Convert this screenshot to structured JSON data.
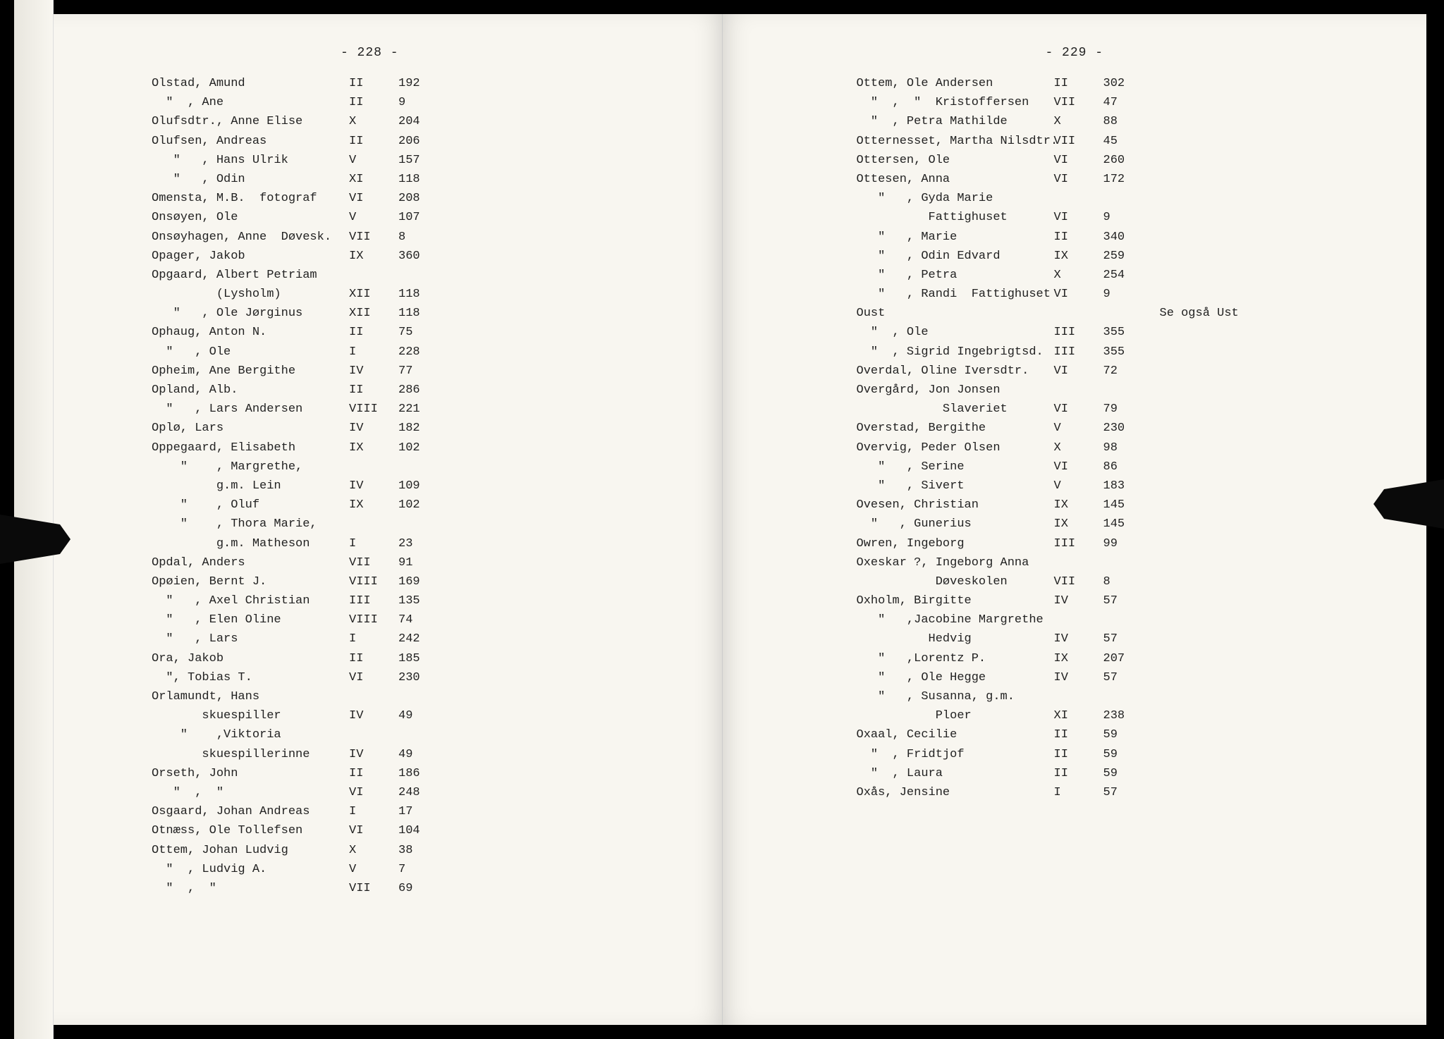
{
  "left": {
    "page_number": "- 228 -",
    "entries": [
      {
        "name": "Olstad, Amund",
        "vol": "II",
        "pg": "192"
      },
      {
        "name": "  \"  , Ane",
        "vol": "II",
        "pg": "9"
      },
      {
        "name": "Olufsdtr., Anne Elise",
        "vol": "X",
        "pg": "204"
      },
      {
        "name": "Olufsen, Andreas",
        "vol": "II",
        "pg": "206"
      },
      {
        "name": "   \"   , Hans Ulrik",
        "vol": "V",
        "pg": "157"
      },
      {
        "name": "   \"   , Odin",
        "vol": "XI",
        "pg": "118"
      },
      {
        "name": "Omensta, M.B.  fotograf",
        "vol": "VI",
        "pg": "208"
      },
      {
        "name": "Onsøyen, Ole",
        "vol": "V",
        "pg": "107"
      },
      {
        "name": "Onsøyhagen, Anne  Døvesk.",
        "vol": "VII",
        "pg": "8"
      },
      {
        "name": "Opager, Jakob",
        "vol": "IX",
        "pg": "360"
      },
      {
        "name": "Opgaard, Albert Petriam",
        "vol": "",
        "pg": ""
      },
      {
        "name": "         (Lysholm)",
        "vol": "XII",
        "pg": "118"
      },
      {
        "name": "   \"   , Ole Jørginus",
        "vol": "XII",
        "pg": "118"
      },
      {
        "name": "Ophaug, Anton N.",
        "vol": "II",
        "pg": "75"
      },
      {
        "name": "  \"   , Ole",
        "vol": "I",
        "pg": "228"
      },
      {
        "name": "Opheim, Ane Bergithe",
        "vol": "IV",
        "pg": "77"
      },
      {
        "name": "Opland, Alb.",
        "vol": "II",
        "pg": "286"
      },
      {
        "name": "  \"   , Lars Andersen",
        "vol": "VIII",
        "pg": "221"
      },
      {
        "name": "Oplø, Lars",
        "vol": "IV",
        "pg": "182"
      },
      {
        "name": "Oppegaard, Elisabeth",
        "vol": "IX",
        "pg": "102"
      },
      {
        "name": "    \"    , Margrethe,",
        "vol": "",
        "pg": ""
      },
      {
        "name": "         g.m. Lein",
        "vol": "IV",
        "pg": "109"
      },
      {
        "name": "    \"    , Oluf",
        "vol": "IX",
        "pg": "102"
      },
      {
        "name": "    \"    , Thora Marie,",
        "vol": "",
        "pg": ""
      },
      {
        "name": "         g.m. Matheson",
        "vol": "I",
        "pg": "23"
      },
      {
        "name": "Opdal, Anders",
        "vol": "VII",
        "pg": "91"
      },
      {
        "name": "Opøien, Bernt J.",
        "vol": "VIII",
        "pg": "169"
      },
      {
        "name": "  \"   , Axel Christian",
        "vol": "III",
        "pg": "135"
      },
      {
        "name": "  \"   , Elen Oline",
        "vol": "VIII",
        "pg": "74"
      },
      {
        "name": "  \"   , Lars",
        "vol": "I",
        "pg": "242"
      },
      {
        "name": "Ora, Jakob",
        "vol": "II",
        "pg": "185"
      },
      {
        "name": "  \", Tobias T.",
        "vol": "VI",
        "pg": "230"
      },
      {
        "name": "Orlamundt, Hans",
        "vol": "",
        "pg": ""
      },
      {
        "name": "       skuespiller",
        "vol": "IV",
        "pg": "49"
      },
      {
        "name": "    \"    ,Viktoria",
        "vol": "",
        "pg": ""
      },
      {
        "name": "       skuespillerinne",
        "vol": "IV",
        "pg": "49"
      },
      {
        "name": "Orseth, John",
        "vol": "II",
        "pg": "186"
      },
      {
        "name": "   \"  ,  \"",
        "vol": "VI",
        "pg": "248"
      },
      {
        "name": "Osgaard, Johan Andreas",
        "vol": "I",
        "pg": "17"
      },
      {
        "name": "Otnæss, Ole Tollefsen",
        "vol": "VI",
        "pg": "104"
      },
      {
        "name": "Ottem, Johan Ludvig",
        "vol": "X",
        "pg": "38"
      },
      {
        "name": "  \"  , Ludvig A.",
        "vol": "V",
        "pg": "7"
      },
      {
        "name": "  \"  ,  \"",
        "vol": "VII",
        "pg": "69"
      }
    ]
  },
  "right": {
    "page_number": "- 229 -",
    "entries": [
      {
        "name": "Ottem, Ole Andersen",
        "vol": "II",
        "pg": "302"
      },
      {
        "name": "  \"  ,  \"  Kristoffersen",
        "vol": "VII",
        "pg": "47"
      },
      {
        "name": "  \"  , Petra Mathilde",
        "vol": "X",
        "pg": "88"
      },
      {
        "name": "Otternesset, Martha Nilsdtr.",
        "vol": "VII",
        "pg": "45"
      },
      {
        "name": "Ottersen, Ole",
        "vol": "VI",
        "pg": "260"
      },
      {
        "name": "Ottesen, Anna",
        "vol": "VI",
        "pg": "172"
      },
      {
        "name": "   \"   , Gyda Marie",
        "vol": "",
        "pg": ""
      },
      {
        "name": "          Fattighuset",
        "vol": "VI",
        "pg": "9"
      },
      {
        "name": "   \"   , Marie",
        "vol": "II",
        "pg": "340"
      },
      {
        "name": "   \"   , Odin Edvard",
        "vol": "IX",
        "pg": "259"
      },
      {
        "name": "   \"   , Petra",
        "vol": "X",
        "pg": "254"
      },
      {
        "name": "   \"   , Randi  Fattighuset",
        "vol": "VI",
        "pg": "9"
      },
      {
        "name": "Oust",
        "vol": "",
        "pg": "",
        "note": "Se også Ust"
      },
      {
        "name": "  \"  , Ole",
        "vol": "III",
        "pg": "355"
      },
      {
        "name": "  \"  , Sigrid Ingebrigtsd.",
        "vol": "III",
        "pg": "355"
      },
      {
        "name": "Overdal, Oline Iversdtr.",
        "vol": "VI",
        "pg": "72"
      },
      {
        "name": "Overgård, Jon Jonsen",
        "vol": "",
        "pg": ""
      },
      {
        "name": "            Slaveriet",
        "vol": "VI",
        "pg": "79"
      },
      {
        "name": "Overstad, Bergithe",
        "vol": "V",
        "pg": "230"
      },
      {
        "name": "Overvig, Peder Olsen",
        "vol": "X",
        "pg": "98"
      },
      {
        "name": "   \"   , Serine",
        "vol": "VI",
        "pg": "86"
      },
      {
        "name": "   \"   , Sivert",
        "vol": "V",
        "pg": "183"
      },
      {
        "name": "Ovesen, Christian",
        "vol": "IX",
        "pg": "145"
      },
      {
        "name": "  \"   , Gunerius",
        "vol": "IX",
        "pg": "145"
      },
      {
        "name": "Owren, Ingeborg",
        "vol": "III",
        "pg": "99"
      },
      {
        "name": "Oxeskar ?, Ingeborg Anna",
        "vol": "",
        "pg": ""
      },
      {
        "name": "           Døveskolen",
        "vol": "VII",
        "pg": "8"
      },
      {
        "name": "Oxholm, Birgitte",
        "vol": "IV",
        "pg": "57"
      },
      {
        "name": "   \"   ,Jacobine Margrethe",
        "vol": "",
        "pg": ""
      },
      {
        "name": "          Hedvig",
        "vol": "IV",
        "pg": "57"
      },
      {
        "name": "   \"   ,Lorentz P.",
        "vol": "IX",
        "pg": "207"
      },
      {
        "name": "   \"   , Ole Hegge",
        "vol": "IV",
        "pg": "57"
      },
      {
        "name": "   \"   , Susanna, g.m.",
        "vol": "",
        "pg": ""
      },
      {
        "name": "           Ploer",
        "vol": "XI",
        "pg": "238"
      },
      {
        "name": "Oxaal, Cecilie",
        "vol": "II",
        "pg": "59"
      },
      {
        "name": "  \"  , Fridtjof",
        "vol": "II",
        "pg": "59"
      },
      {
        "name": "  \"  , Laura",
        "vol": "II",
        "pg": "59"
      },
      {
        "name": "Oxås, Jensine",
        "vol": "I",
        "pg": "57"
      }
    ]
  }
}
